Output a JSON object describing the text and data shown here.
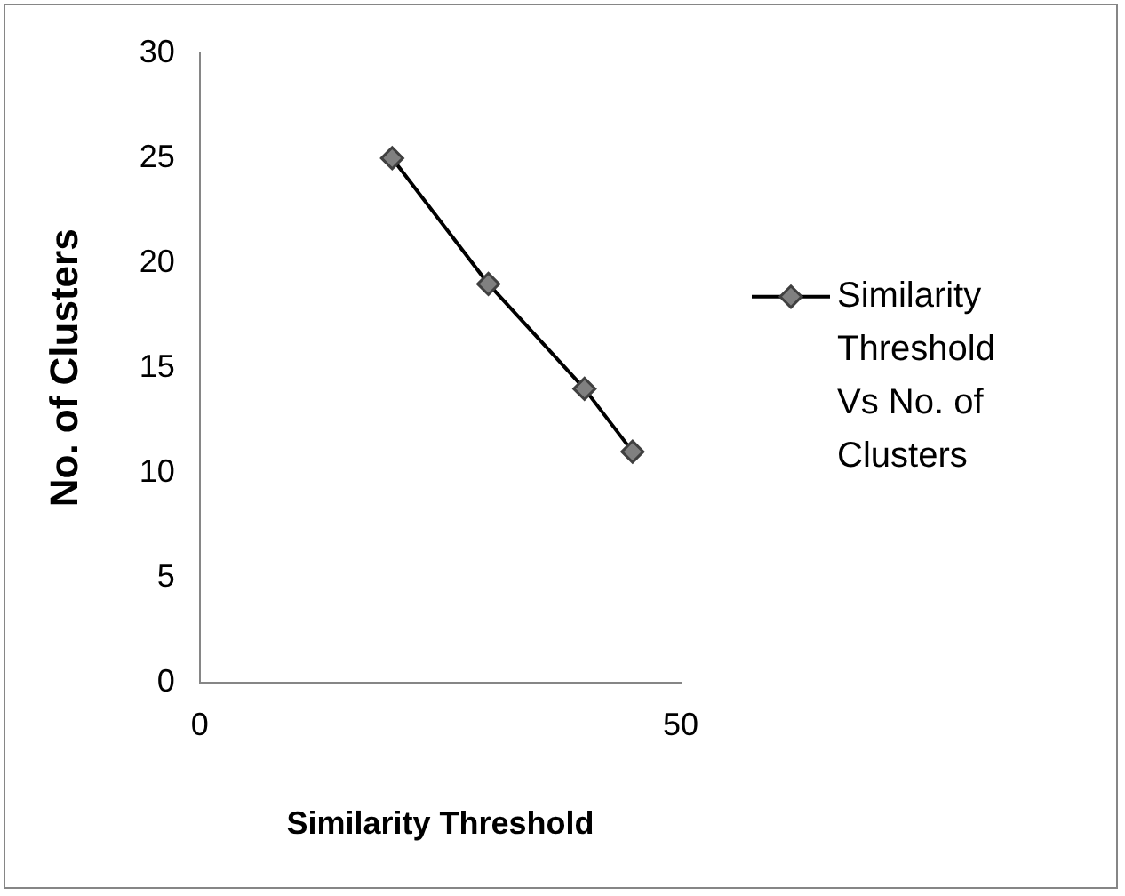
{
  "chart_data": {
    "type": "line",
    "xlabel": "Similarity Threshold",
    "ylabel": "No. of Clusters",
    "series": [
      {
        "name": "Similarity Threshold Vs No. of Clusters",
        "color": "#000000",
        "x": [
          20,
          30,
          40,
          45
        ],
        "values": [
          25,
          19,
          14,
          11
        ]
      }
    ],
    "xlim": [
      0,
      50
    ],
    "xticks": [
      0,
      50
    ],
    "ylim": [
      0,
      30
    ],
    "yticks": [
      0,
      5,
      10,
      15,
      20,
      25,
      30
    ],
    "grid": false,
    "legend": "right",
    "marker": "diamond",
    "line_style": "solid"
  }
}
